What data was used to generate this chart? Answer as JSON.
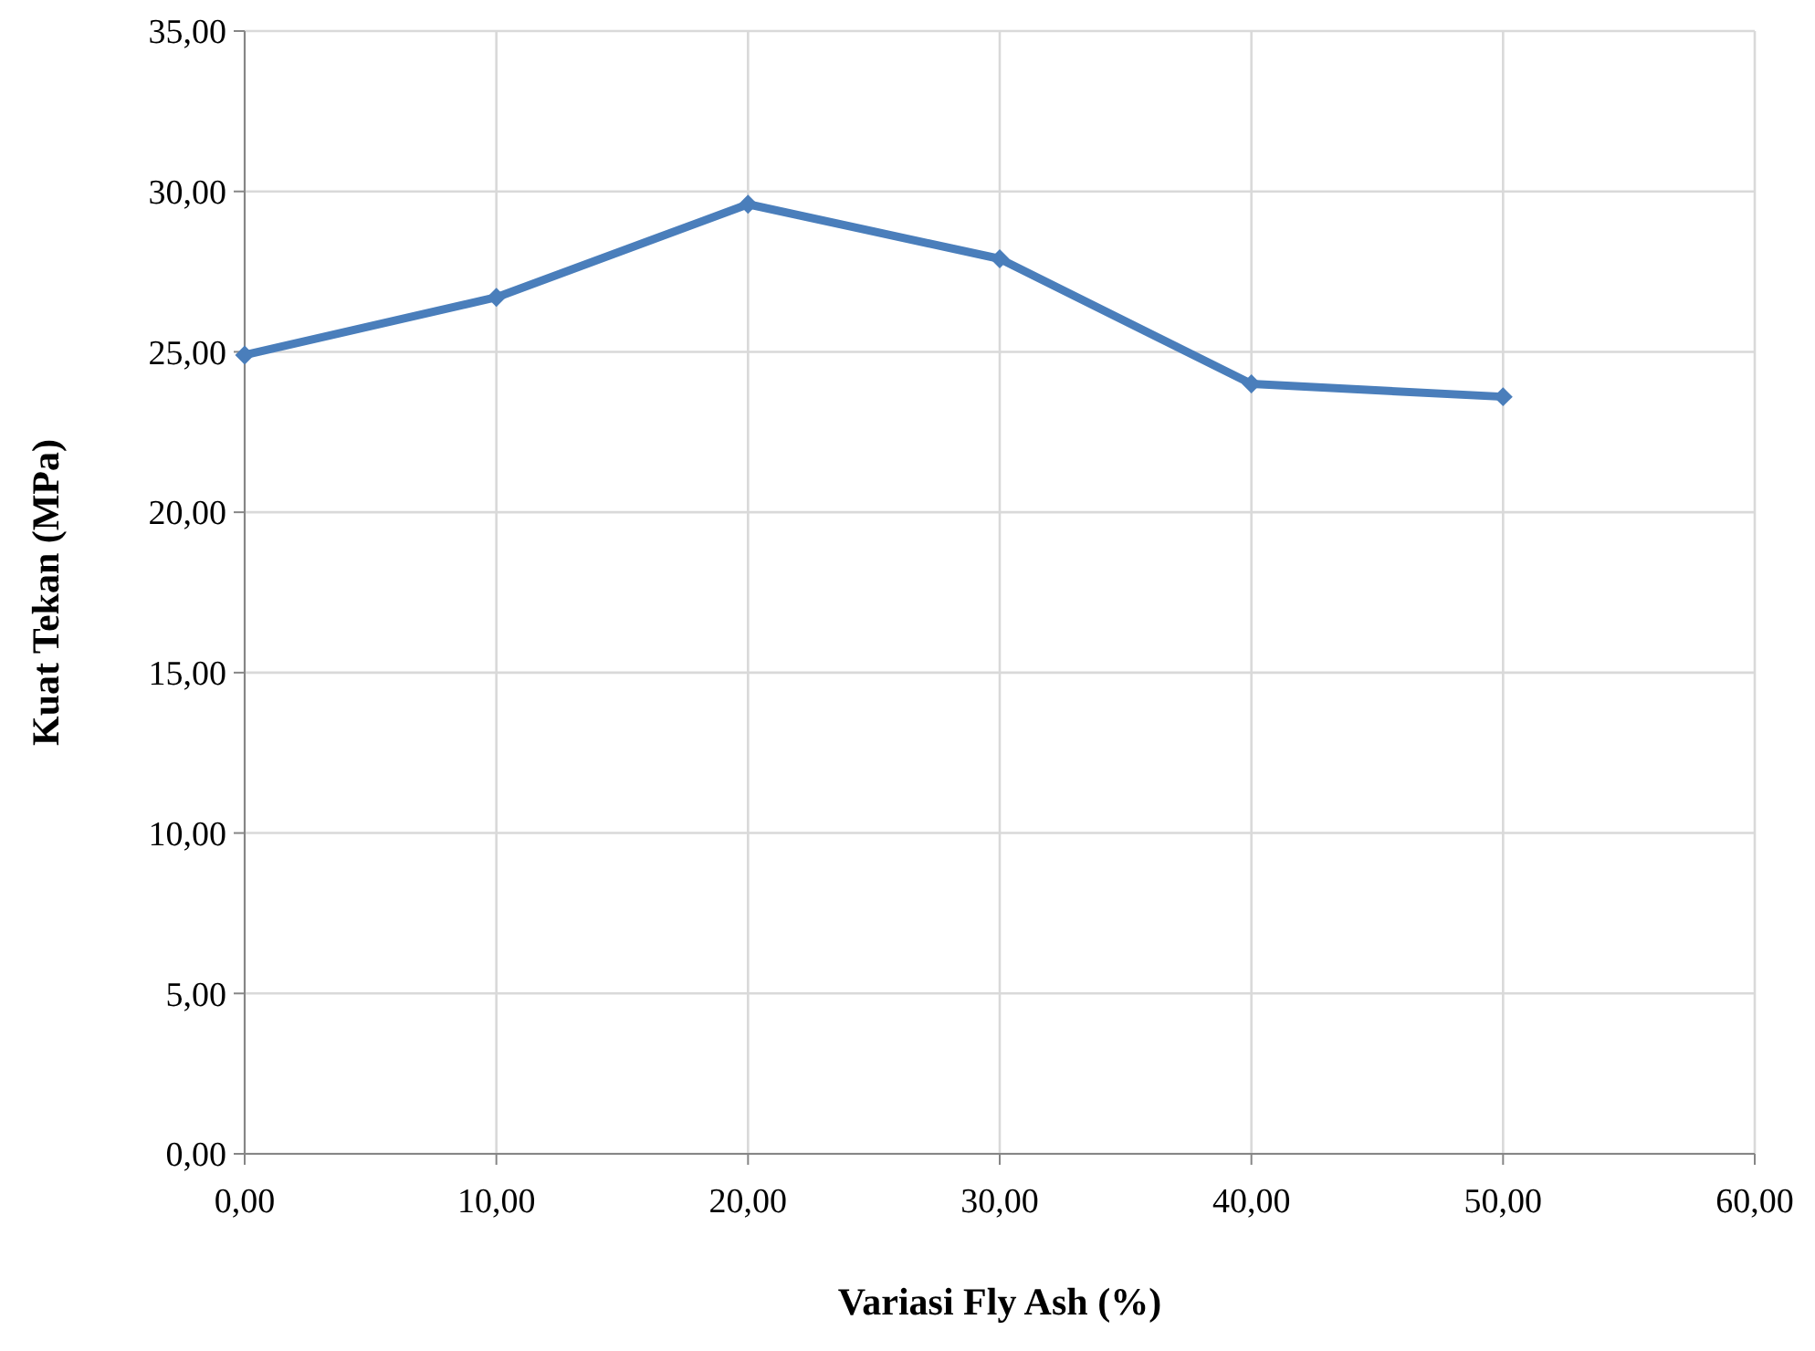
{
  "chart_data": {
    "type": "line",
    "xlabel": "Variasi Fly Ash (%)",
    "ylabel": "Kuat Tekan (MPa)",
    "x": [
      0,
      10,
      20,
      30,
      40,
      50
    ],
    "series": [
      {
        "color": "#4a7ebb",
        "values": [
          24.9,
          26.7,
          29.6,
          27.9,
          24.0,
          23.6
        ]
      }
    ],
    "xlim": [
      0,
      60
    ],
    "xticks": [
      {
        "value": 0,
        "label": "0,00"
      },
      {
        "value": 10,
        "label": "10,00"
      },
      {
        "value": 20,
        "label": "20,00"
      },
      {
        "value": 30,
        "label": "30,00"
      },
      {
        "value": 40,
        "label": "40,00"
      },
      {
        "value": 50,
        "label": "50,00"
      },
      {
        "value": 60,
        "label": "60,00"
      }
    ],
    "ylim": [
      0,
      35
    ],
    "yticks": [
      {
        "value": 0,
        "label": "0,00"
      },
      {
        "value": 5,
        "label": "5,00"
      },
      {
        "value": 10,
        "label": "10,00"
      },
      {
        "value": 15,
        "label": "15,00"
      },
      {
        "value": 20,
        "label": "20,00"
      },
      {
        "value": 25,
        "label": "25,00"
      },
      {
        "value": 30,
        "label": "30,00"
      },
      {
        "value": 35,
        "label": "35,00"
      }
    ],
    "grid": true,
    "marker": "diamond",
    "line_style": "solid"
  }
}
